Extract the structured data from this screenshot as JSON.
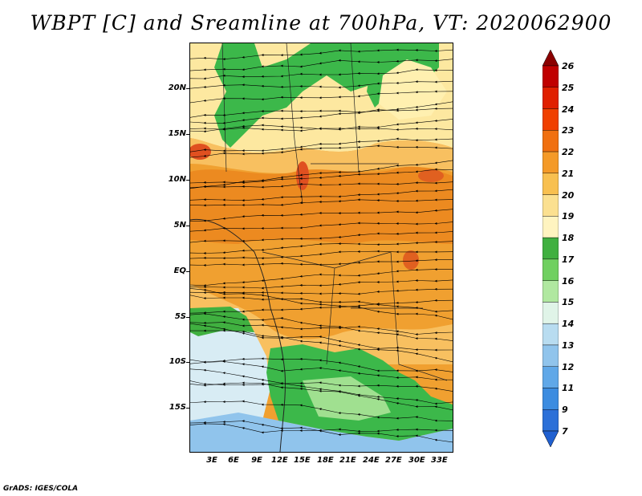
{
  "title": "WBPT [C] and Sreamline at 700hPa, VT: 2020062900",
  "credit": "GrADS: IGES/COLA",
  "lat_labels": [
    "20N",
    "15N",
    "10N",
    "5N",
    "EQ",
    "5S",
    "10S",
    "15S"
  ],
  "lon_labels": [
    "3E",
    "6E",
    "9E",
    "12E",
    "15E",
    "18E",
    "21E",
    "24E",
    "27E",
    "30E",
    "33E"
  ],
  "colorbar": {
    "labels": [
      "26",
      "25",
      "24",
      "23",
      "22",
      "21",
      "20",
      "19",
      "18",
      "17",
      "16",
      "15",
      "14",
      "13",
      "12",
      "11",
      "9",
      "7"
    ],
    "colors": [
      "#8b0000",
      "#c00000",
      "#e02000",
      "#f04000",
      "#f07010",
      "#f49a28",
      "#f8c050",
      "#fbe090",
      "#fff4c0",
      "#40b040",
      "#70d060",
      "#b0e8a0",
      "#e0f4e8",
      "#b8dcf0",
      "#90c4ec",
      "#60a8e8",
      "#3c8ce0",
      "#2c70d8",
      "#2060d0"
    ]
  },
  "colors": {
    "warm_orange": "#f0a030",
    "deep_orange": "#ec8a20",
    "light_orange": "#f8c060",
    "cream": "#fff0b0",
    "green": "#3cb84a",
    "light_green": "#a0e090",
    "pale_blue": "#d8ecf4",
    "blue": "#90c4ec",
    "red": "#e05020"
  }
}
